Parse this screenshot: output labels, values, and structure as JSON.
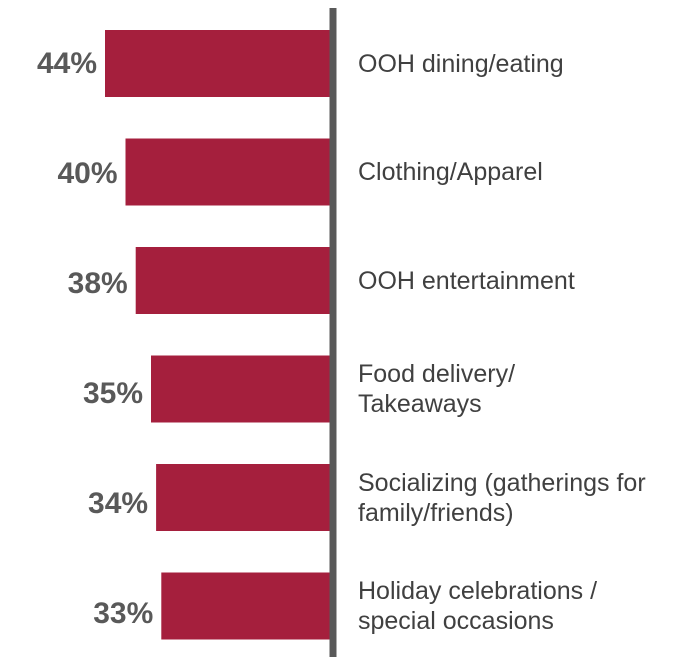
{
  "chart_data": {
    "type": "bar",
    "orientation": "horizontal",
    "categories": [
      "OOH dining/eating",
      "Clothing/Apparel",
      "OOH entertainment",
      "Food delivery/\nTakeaways",
      "Socializing (gatherings for\nfamily/friends)",
      "Holiday celebrations /\nspecial occasions"
    ],
    "values": [
      44,
      40,
      38,
      35,
      34,
      33
    ],
    "value_labels": [
      "44%",
      "40%",
      "38%",
      "35%",
      "34%",
      "33%"
    ],
    "unit": "%",
    "xlim": [
      0,
      50
    ],
    "bar_direction": "extends left from a central axis",
    "grid": false,
    "legend": "none"
  },
  "colors": {
    "bar": "#A51F3D",
    "axis": "#595959",
    "value_label": "#595959",
    "category_label": "#404040"
  }
}
